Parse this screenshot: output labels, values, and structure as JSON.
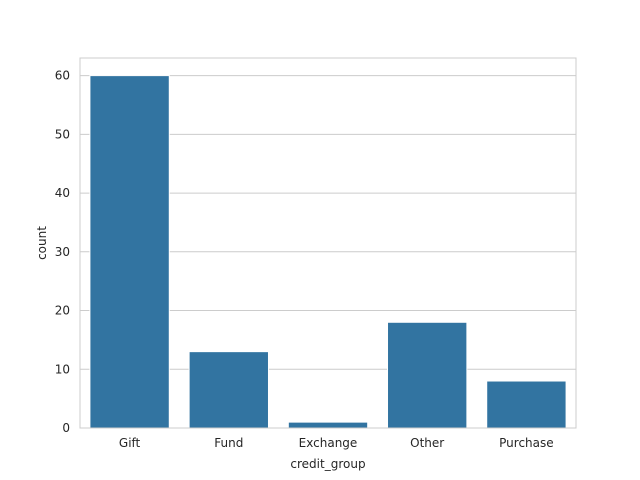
{
  "chart_data": {
    "type": "bar",
    "categories": [
      "Gift",
      "Fund",
      "Exchange",
      "Other",
      "Purchase"
    ],
    "values": [
      60,
      13,
      1,
      18,
      8
    ],
    "title": "",
    "xlabel": "credit_group",
    "ylabel": "count",
    "ylim": [
      0,
      63
    ],
    "yticks": [
      "0",
      "10",
      "20",
      "30",
      "40",
      "50",
      "60"
    ],
    "grid": true,
    "bar_color": "#3274a1",
    "grid_color": "#cccccc",
    "frame_color": "#cccccc"
  }
}
